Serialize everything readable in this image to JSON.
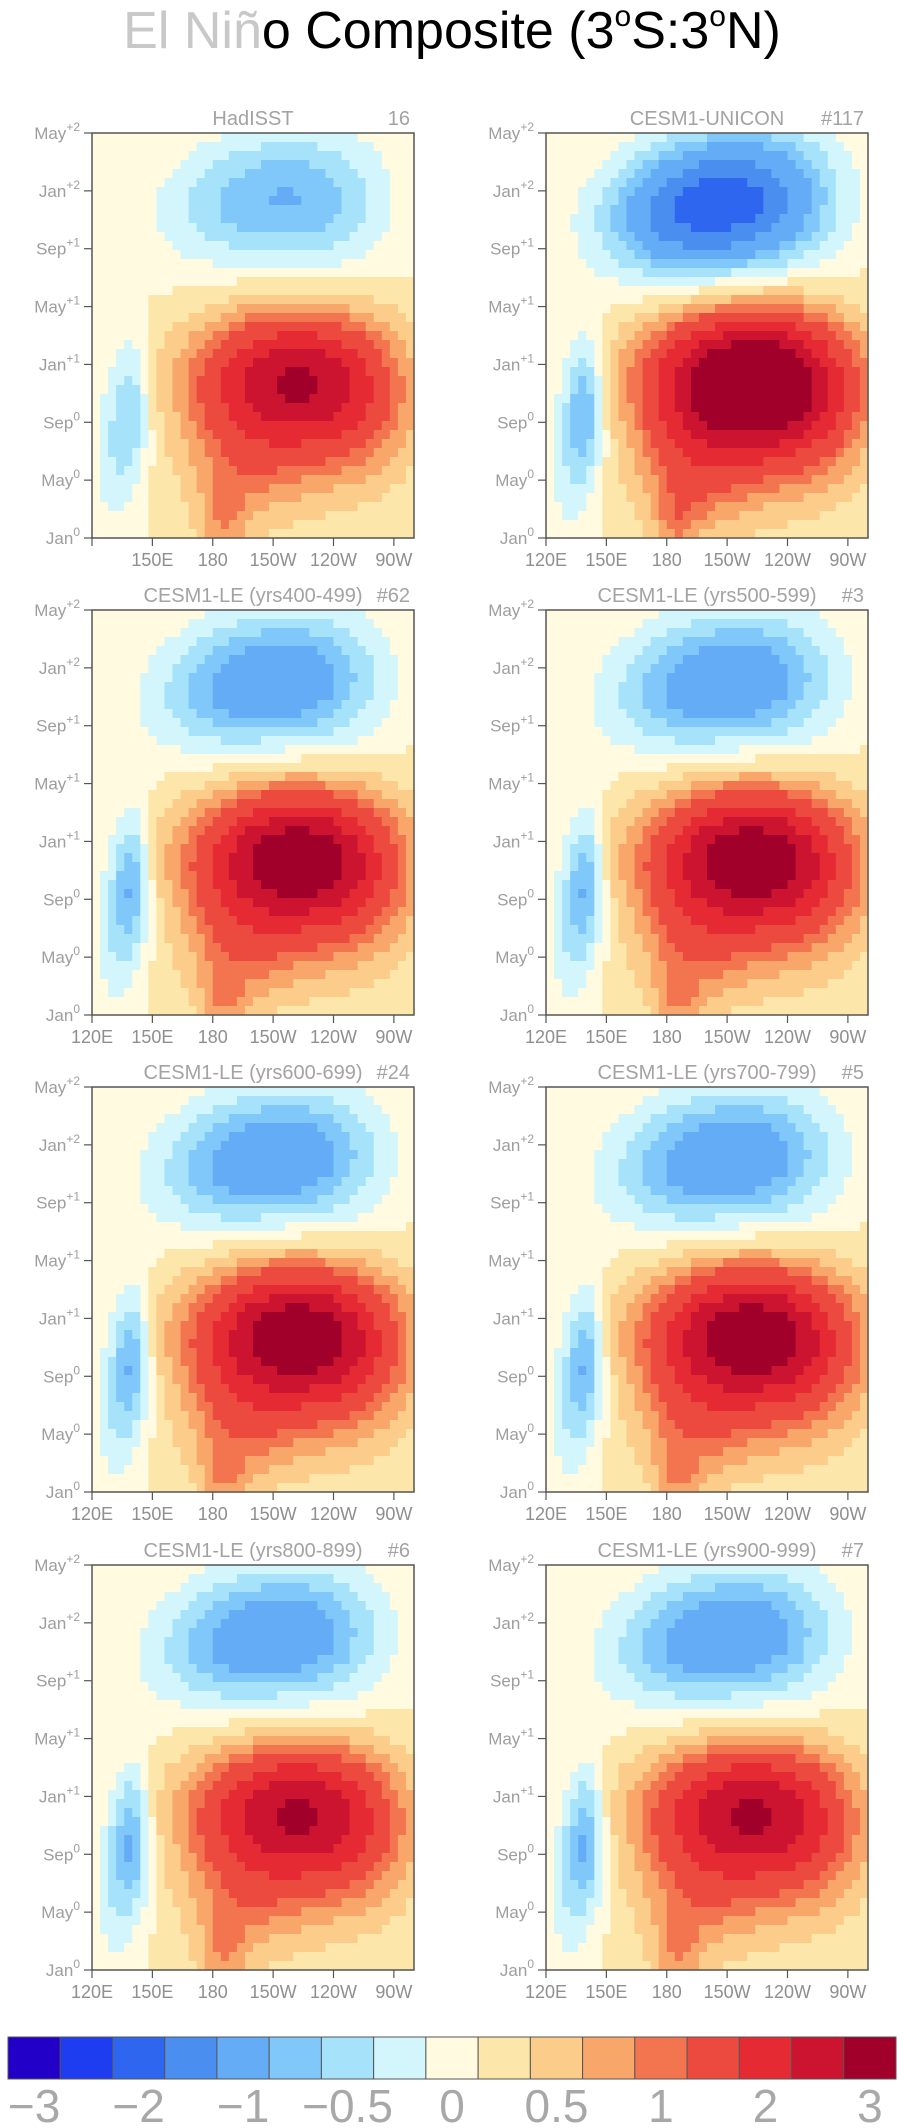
{
  "figure": {
    "title_part1": "El Niñ",
    "title_part2": "o Composite (3",
    "title_o1": "o",
    "title_part3": "S:3",
    "title_o2": "o",
    "title_part4": "N)"
  },
  "chart_data": {
    "type": "heatmap",
    "y_ticks": [
      {
        "base": "Jan",
        "sup": "0"
      },
      {
        "base": "May",
        "sup": "0"
      },
      {
        "base": "Sep",
        "sup": "0"
      },
      {
        "base": "Jan",
        "sup": "+1"
      },
      {
        "base": "May",
        "sup": "+1"
      },
      {
        "base": "Sep",
        "sup": "+1"
      },
      {
        "base": "Jan",
        "sup": "+2"
      },
      {
        "base": "May",
        "sup": "+2"
      }
    ],
    "x_ticks": [
      "120E",
      "150E",
      "180",
      "150W",
      "120W",
      "90W"
    ],
    "panels": [
      {
        "title": "HadISST",
        "tag": "16",
        "left_x_tick": false,
        "variant": "obs"
      },
      {
        "title": "CESM1-UNICON",
        "tag": "#117",
        "left_x_tick": true,
        "variant": "unicon"
      },
      {
        "title": "CESM1-LE (yrs400-499)",
        "tag": "#62",
        "left_x_tick": true,
        "variant": "le"
      },
      {
        "title": "CESM1-LE (yrs500-599)",
        "tag": "#3",
        "left_x_tick": true,
        "variant": "le"
      },
      {
        "title": "CESM1-LE (yrs600-699)",
        "tag": "#24",
        "left_x_tick": true,
        "variant": "le"
      },
      {
        "title": "CESM1-LE (yrs700-799)",
        "tag": "#5",
        "left_x_tick": true,
        "variant": "le"
      },
      {
        "title": "CESM1-LE (yrs800-899)",
        "tag": "#6",
        "left_x_tick": true,
        "variant": "le_weak"
      },
      {
        "title": "CESM1-LE (yrs900-999)",
        "tag": "#7",
        "left_x_tick": true,
        "variant": "le_weak"
      }
    ],
    "colorbar": {
      "levels": [
        -3,
        -2.5,
        -2,
        -1.5,
        -1,
        -0.75,
        -0.5,
        -0.25,
        0,
        0.25,
        0.5,
        0.75,
        1,
        1.5,
        2,
        2.5,
        3
      ],
      "labels": [
        "−3",
        "−2",
        "−1",
        "−0.5",
        "0",
        "0.5",
        "1",
        "2",
        "3"
      ],
      "colors": [
        "#2200c8",
        "#1e3cf0",
        "#2f66f0",
        "#4a8ef0",
        "#64acf5",
        "#80c8fa",
        "#a6e2fa",
        "#d2f6fc",
        "#fffae0",
        "#fde6aa",
        "#fccc8a",
        "#f8a66a",
        "#f27550",
        "#ed4a3f",
        "#e52a34",
        "#cc1430",
        "#a0002a"
      ]
    }
  }
}
